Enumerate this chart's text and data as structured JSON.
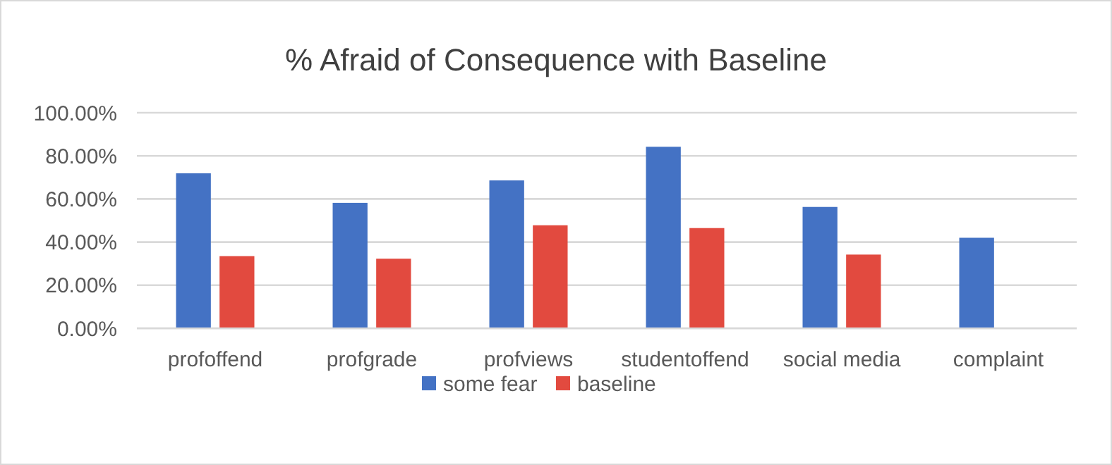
{
  "chart_data": {
    "type": "bar",
    "title": "% Afraid of Consequence with Baseline",
    "categories": [
      "profoffend",
      "profgrade",
      "profviews",
      "studentoffend",
      "social media",
      "complaint"
    ],
    "series": [
      {
        "name": "some fear",
        "color": "#4472c4",
        "values": [
          71.9,
          58.2,
          68.6,
          84.2,
          56.3,
          42.0
        ]
      },
      {
        "name": "baseline",
        "color": "#e24a3f",
        "values": [
          33.5,
          32.3,
          47.8,
          46.5,
          34.2,
          null
        ]
      }
    ],
    "ylim": [
      0,
      100
    ],
    "yticks": [
      {
        "value": 0,
        "label": "0.00%"
      },
      {
        "value": 20,
        "label": "20.00%"
      },
      {
        "value": 40,
        "label": "40.00%"
      },
      {
        "value": 60,
        "label": "60.00%"
      },
      {
        "value": 80,
        "label": "80.00%"
      },
      {
        "value": 100,
        "label": "100.00%"
      }
    ],
    "grid": "y",
    "legend": "bottom"
  }
}
